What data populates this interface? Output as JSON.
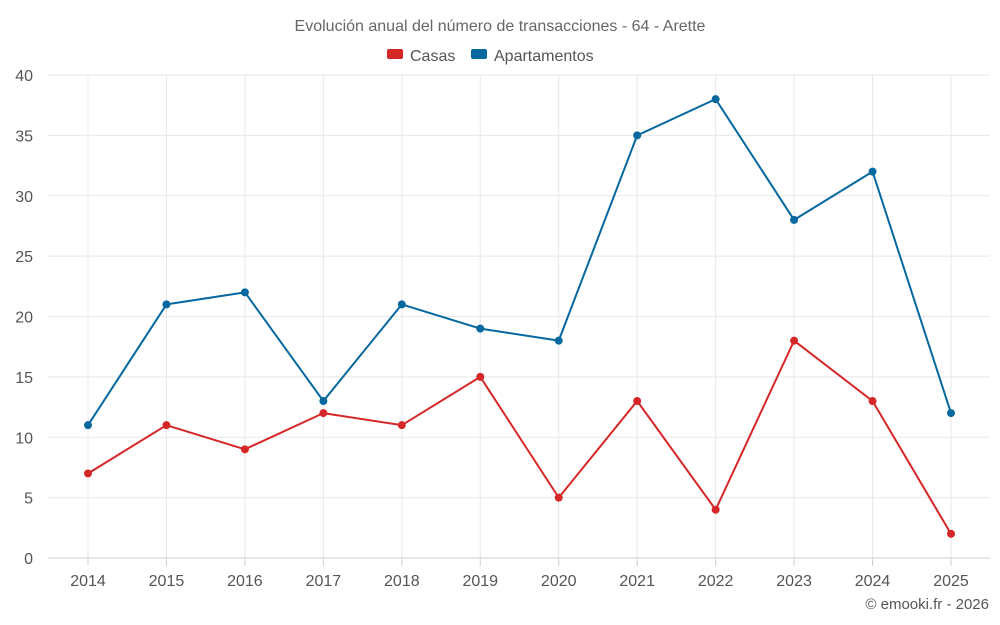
{
  "chart_data": {
    "type": "line",
    "title": "Evolución anual del número de transacciones - 64 - Arette",
    "categories": [
      "2014",
      "2015",
      "2016",
      "2017",
      "2018",
      "2019",
      "2020",
      "2021",
      "2022",
      "2023",
      "2024",
      "2025"
    ],
    "series": [
      {
        "name": "Casas",
        "color": "#d62728",
        "values": [
          7,
          11,
          9,
          12,
          11,
          15,
          5,
          13,
          4,
          18,
          13,
          2
        ]
      },
      {
        "name": "Apartamentos",
        "color": "#05689e",
        "values": [
          11,
          21,
          22,
          13,
          21,
          19,
          18,
          35,
          38,
          28,
          32,
          12
        ]
      }
    ],
    "ylim": [
      0,
      40
    ],
    "yticks": [
      0,
      5,
      10,
      15,
      20,
      25,
      30,
      35,
      40
    ],
    "legend_position": "top-center",
    "grid": true,
    "xlabel": "",
    "ylabel": ""
  },
  "credit": "© emooki.fr - 2026"
}
